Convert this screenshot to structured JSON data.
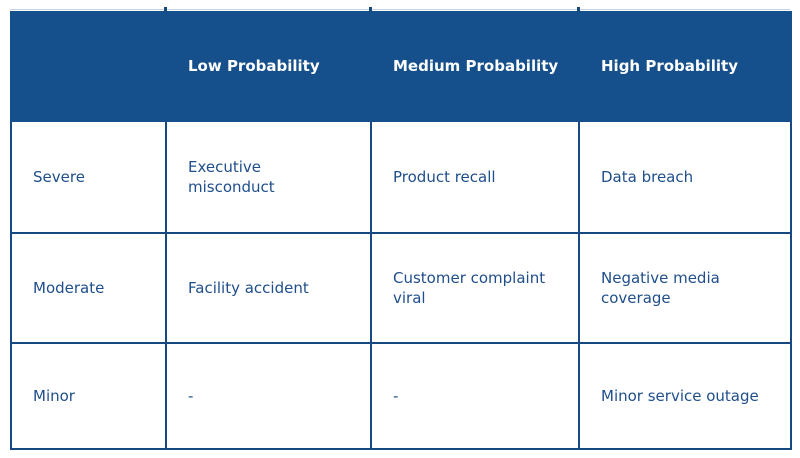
{
  "colors": {
    "header_bg": "#15508c",
    "border": "#16497f",
    "cell_text": "#1f4e8b",
    "header_text": "#ffffff",
    "page_bg": "#ffffff"
  },
  "chart_data": {
    "type": "table",
    "title": "",
    "columns": [
      "",
      "Low Probability",
      "Medium Probability",
      "High Probability"
    ],
    "rows": [
      {
        "label": "Severe",
        "cells": [
          "Executive misconduct",
          "Product recall",
          "Data breach"
        ]
      },
      {
        "label": "Moderate",
        "cells": [
          "Facility accident",
          "Customer complaint viral",
          "Negative media coverage"
        ]
      },
      {
        "label": "Minor",
        "cells": [
          "-",
          "-",
          "Minor service outage"
        ]
      }
    ],
    "layout_hints": {
      "header_style": "solid dark blue bar, white bold text, no internal separators",
      "body_style": "white cells, dark blue 2px grid borders, dark blue text",
      "grid": true
    }
  }
}
